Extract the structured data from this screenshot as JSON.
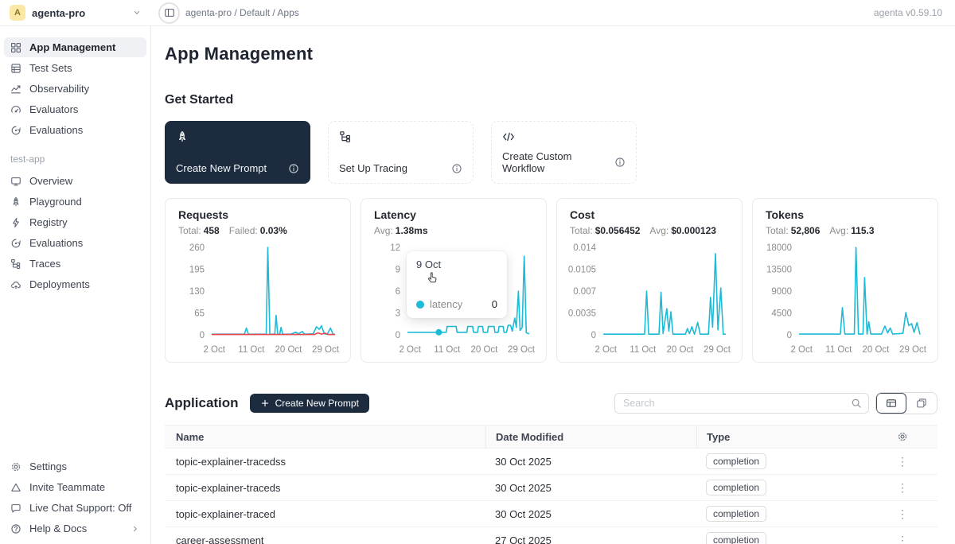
{
  "colors": {
    "accent_dark": "#1c2c3e",
    "cyan": "#1cbbd6",
    "red": "#e8474c",
    "active_bg": "#f0f1f4"
  },
  "top_bar": {
    "workspace_initial": "A",
    "workspace": "agenta-pro",
    "breadcrumb": "agenta-pro / Default / Apps",
    "version": "agenta v0.59.10"
  },
  "sidebar": {
    "main_items": [
      {
        "label": "App Management",
        "icon": "grid-icon",
        "active": true
      },
      {
        "label": "Test Sets",
        "icon": "table-icon",
        "active": false
      },
      {
        "label": "Observability",
        "icon": "trend-chart-icon",
        "active": false
      },
      {
        "label": "Evaluators",
        "icon": "gauge-icon",
        "active": false
      },
      {
        "label": "Evaluations",
        "icon": "eval-loop-icon",
        "active": false
      }
    ],
    "section_label": "test-app",
    "app_items": [
      {
        "label": "Overview",
        "icon": "monitor-icon"
      },
      {
        "label": "Playground",
        "icon": "rocket-icon"
      },
      {
        "label": "Registry",
        "icon": "bolt-icon"
      },
      {
        "label": "Evaluations",
        "icon": "eval-loop-icon"
      },
      {
        "label": "Traces",
        "icon": "tree-icon"
      },
      {
        "label": "Deployments",
        "icon": "cloud-icon"
      }
    ],
    "footer_items": [
      {
        "label": "Settings",
        "icon": "gear-icon"
      },
      {
        "label": "Invite Teammate",
        "icon": "triangle-icon"
      },
      {
        "label": "Live Chat Support: Off",
        "icon": "chat-icon"
      },
      {
        "label": "Help & Docs",
        "icon": "question-icon",
        "chevron": true
      }
    ]
  },
  "main": {
    "title": "App Management",
    "get_started": {
      "heading": "Get Started",
      "cards": [
        {
          "label": "Create New Prompt",
          "icon": "rocket-icon",
          "variant": "dark"
        },
        {
          "label": "Set Up Tracing",
          "icon": "tree-icon",
          "variant": "light"
        },
        {
          "label": "Create Custom Workflow",
          "icon": "code-icon",
          "variant": "light"
        }
      ]
    },
    "application": {
      "heading": "Application",
      "create_button": "Create New Prompt",
      "search_placeholder": "Search",
      "table": {
        "columns": [
          "Name",
          "Date Modified",
          "Type"
        ],
        "rows": [
          {
            "name": "topic-explainer-tracedss",
            "date": "30 Oct 2025",
            "type": "completion"
          },
          {
            "name": "topic-explainer-traceds",
            "date": "30 Oct 2025",
            "type": "completion"
          },
          {
            "name": "topic-explainer-traced",
            "date": "30 Oct 2025",
            "type": "completion"
          },
          {
            "name": "career-assessment",
            "date": "27 Oct 2025",
            "type": "completion"
          }
        ]
      }
    }
  },
  "tooltip": {
    "date": "9 Oct",
    "series": "latency",
    "value": "0"
  },
  "chart_data": [
    {
      "type": "line",
      "title": "Requests",
      "stats": [
        {
          "label": "Total:",
          "value": "458"
        },
        {
          "label": "Failed:",
          "value": "0.03%"
        }
      ],
      "x_range": [
        1,
        31.5
      ],
      "x_ticks": [
        {
          "x": 2,
          "label": "2 Oct"
        },
        {
          "x": 11,
          "label": "11 Oct"
        },
        {
          "x": 20,
          "label": "20 Oct"
        },
        {
          "x": 29,
          "label": "29 Oct"
        }
      ],
      "y_ticks": [
        {
          "v": 0,
          "label": "0"
        },
        {
          "v": 65,
          "label": "65"
        },
        {
          "v": 130,
          "label": "130"
        },
        {
          "v": 195,
          "label": "195"
        },
        {
          "v": 260,
          "label": "260"
        }
      ],
      "y_max": 260,
      "series": [
        {
          "name": "success",
          "color": "#1cbbd6",
          "points": [
            [
              1.5,
              2
            ],
            [
              9.3,
              2
            ],
            [
              9.8,
              20
            ],
            [
              10.3,
              2
            ],
            [
              14.6,
              2
            ],
            [
              15,
              260
            ],
            [
              15.5,
              2
            ],
            [
              16.7,
              2
            ],
            [
              17,
              58
            ],
            [
              17.4,
              2
            ],
            [
              17.9,
              2
            ],
            [
              18.2,
              22
            ],
            [
              18.6,
              2
            ],
            [
              20.5,
              2
            ],
            [
              21.8,
              8
            ],
            [
              22.4,
              3
            ],
            [
              23.4,
              10
            ],
            [
              23.9,
              2
            ],
            [
              26,
              3
            ],
            [
              26.8,
              24
            ],
            [
              27.5,
              16
            ],
            [
              28,
              27
            ],
            [
              28.7,
              3
            ],
            [
              29.4,
              2
            ],
            [
              30.2,
              20
            ],
            [
              30.8,
              2
            ],
            [
              31.2,
              2
            ]
          ]
        },
        {
          "name": "failed",
          "color": "#e8474c",
          "points": [
            [
              1.5,
              1
            ],
            [
              26.3,
              1
            ],
            [
              27.2,
              6
            ],
            [
              28,
              2
            ],
            [
              28.9,
              5
            ],
            [
              29.6,
              1
            ],
            [
              31.2,
              1
            ]
          ]
        }
      ]
    },
    {
      "type": "line",
      "title": "Latency",
      "stats": [
        {
          "label": "Avg:",
          "value": "1.38ms"
        }
      ],
      "x_range": [
        1,
        31.5
      ],
      "x_ticks": [
        {
          "x": 2,
          "label": "2 Oct"
        },
        {
          "x": 11,
          "label": "11 Oct"
        },
        {
          "x": 20,
          "label": "20 Oct"
        },
        {
          "x": 29,
          "label": "29 Oct"
        }
      ],
      "y_ticks": [
        {
          "v": 0,
          "label": "0"
        },
        {
          "v": 3,
          "label": "3"
        },
        {
          "v": 6,
          "label": "6"
        },
        {
          "v": 9,
          "label": "9"
        },
        {
          "v": 12,
          "label": "12"
        }
      ],
      "y_max": 12,
      "marker": {
        "x": 9,
        "y": 0.35,
        "color": "#1cbbd6"
      },
      "series": [
        {
          "name": "latency",
          "color": "#1cbbd6",
          "points": [
            [
              1.5,
              0.35
            ],
            [
              9,
              0.35
            ],
            [
              10.8,
              0.35
            ],
            [
              11,
              1.15
            ],
            [
              13.2,
              1.15
            ],
            [
              13.4,
              0.35
            ],
            [
              15.8,
              0.35
            ],
            [
              16,
              1.15
            ],
            [
              17.2,
              1.15
            ],
            [
              17.4,
              0.35
            ],
            [
              18.4,
              0.35
            ],
            [
              18.6,
              1.15
            ],
            [
              19.6,
              1.15
            ],
            [
              19.8,
              0.35
            ],
            [
              20.8,
              0.35
            ],
            [
              21,
              1.15
            ],
            [
              22.4,
              1.15
            ],
            [
              22.6,
              0.35
            ],
            [
              23.4,
              0.35
            ],
            [
              23.6,
              1.15
            ],
            [
              24.6,
              1.15
            ],
            [
              24.8,
              0.35
            ],
            [
              25.4,
              0.35
            ],
            [
              25.8,
              1.3
            ],
            [
              26.4,
              1.3
            ],
            [
              26.8,
              0.5
            ],
            [
              27.4,
              2.3
            ],
            [
              27.8,
              1
            ],
            [
              28.3,
              6
            ],
            [
              28.7,
              0.6
            ],
            [
              29.2,
              1
            ],
            [
              29.7,
              10.8
            ],
            [
              30.2,
              0.3
            ],
            [
              30.8,
              0.15
            ]
          ]
        }
      ]
    },
    {
      "type": "line",
      "title": "Cost",
      "stats": [
        {
          "label": "Total:",
          "value": "$0.056452"
        },
        {
          "label": "Avg:",
          "value": "$0.000123"
        }
      ],
      "x_range": [
        1,
        31.5
      ],
      "x_ticks": [
        {
          "x": 2,
          "label": "2 Oct"
        },
        {
          "x": 11,
          "label": "11 Oct"
        },
        {
          "x": 20,
          "label": "20 Oct"
        },
        {
          "x": 29,
          "label": "29 Oct"
        }
      ],
      "y_ticks": [
        {
          "v": 0,
          "label": "0"
        },
        {
          "v": 0.0035,
          "label": "0.0035"
        },
        {
          "v": 0.007,
          "label": "0.007"
        },
        {
          "v": 0.0105,
          "label": "0.0105"
        },
        {
          "v": 0.014,
          "label": "0.014"
        }
      ],
      "y_max": 0.014,
      "series": [
        {
          "name": "cost",
          "color": "#1cbbd6",
          "points": [
            [
              1.5,
              0.0001
            ],
            [
              11.4,
              0.0001
            ],
            [
              11.9,
              0.007
            ],
            [
              12.4,
              0.0001
            ],
            [
              14.9,
              0.0001
            ],
            [
              15.4,
              0.0068
            ],
            [
              15.9,
              0.0002
            ],
            [
              16.8,
              0.0042
            ],
            [
              17.3,
              0.0006
            ],
            [
              17.8,
              0.0037
            ],
            [
              18.3,
              0.0001
            ],
            [
              21.3,
              0.0001
            ],
            [
              21.8,
              0.001
            ],
            [
              22.3,
              0.0002
            ],
            [
              22.9,
              0.0013
            ],
            [
              23.5,
              0.0001
            ],
            [
              24.3,
              0.002
            ],
            [
              24.9,
              0.0001
            ],
            [
              26.9,
              0.0001
            ],
            [
              27.4,
              0.006
            ],
            [
              27.9,
              0.0012
            ],
            [
              28.6,
              0.013
            ],
            [
              29.2,
              0.0008
            ],
            [
              29.9,
              0.0075
            ],
            [
              30.5,
              0.0001
            ],
            [
              31,
              0.0001
            ]
          ]
        }
      ]
    },
    {
      "type": "line",
      "title": "Tokens",
      "stats": [
        {
          "label": "Total:",
          "value": "52,806"
        },
        {
          "label": "Avg:",
          "value": "115.3"
        }
      ],
      "x_range": [
        1,
        31.5
      ],
      "x_ticks": [
        {
          "x": 2,
          "label": "2 Oct"
        },
        {
          "x": 11,
          "label": "11 Oct"
        },
        {
          "x": 20,
          "label": "20 Oct"
        },
        {
          "x": 29,
          "label": "29 Oct"
        }
      ],
      "y_ticks": [
        {
          "v": 0,
          "label": "0"
        },
        {
          "v": 4500,
          "label": "4500"
        },
        {
          "v": 9000,
          "label": "9000"
        },
        {
          "v": 13500,
          "label": "13500"
        },
        {
          "v": 18000,
          "label": "18000"
        }
      ],
      "y_max": 18000,
      "series": [
        {
          "name": "tokens",
          "color": "#1cbbd6",
          "points": [
            [
              1.5,
              150
            ],
            [
              11.4,
              150
            ],
            [
              11.9,
              5600
            ],
            [
              12.5,
              150
            ],
            [
              14.8,
              150
            ],
            [
              15.2,
              18000
            ],
            [
              15.8,
              150
            ],
            [
              16.9,
              150
            ],
            [
              17.3,
              11800
            ],
            [
              17.9,
              150
            ],
            [
              18.3,
              2700
            ],
            [
              18.8,
              150
            ],
            [
              21.4,
              150
            ],
            [
              22.2,
              1800
            ],
            [
              22.9,
              400
            ],
            [
              23.5,
              1400
            ],
            [
              24.1,
              150
            ],
            [
              26.6,
              300
            ],
            [
              27.3,
              4600
            ],
            [
              28,
              1900
            ],
            [
              28.7,
              2300
            ],
            [
              29.3,
              500
            ],
            [
              30,
              2500
            ],
            [
              30.7,
              150
            ]
          ]
        }
      ]
    }
  ]
}
